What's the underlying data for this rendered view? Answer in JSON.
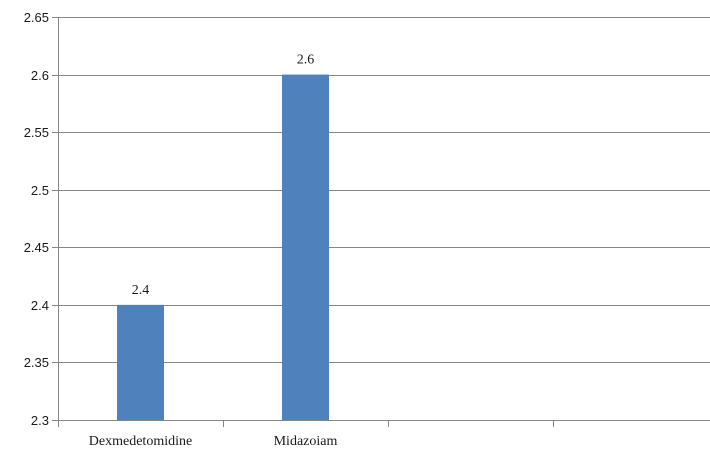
{
  "chart_data": {
    "type": "bar",
    "categories": [
      "Dexmedetomidine",
      "Midazoiam",
      "",
      ""
    ],
    "values": [
      2.4,
      2.6,
      null,
      null
    ],
    "data_labels": [
      "2.4",
      "2.6",
      "",
      ""
    ],
    "title": "",
    "xlabel": "",
    "ylabel": "",
    "ylim": [
      2.3,
      2.65
    ],
    "yticks": [
      2.3,
      2.35,
      2.4,
      2.45,
      2.5,
      2.55,
      2.6,
      2.65
    ],
    "ytick_labels": [
      "2.3",
      "2.35",
      "2.4",
      "2.45",
      "2.5",
      "2.55",
      "2.6",
      "2.65"
    ],
    "grid": true,
    "legend": "none",
    "colors": {
      "bar": "#4f81bd",
      "grid": "#868686",
      "axis": "#868686",
      "text": "#1a1a1a"
    }
  }
}
